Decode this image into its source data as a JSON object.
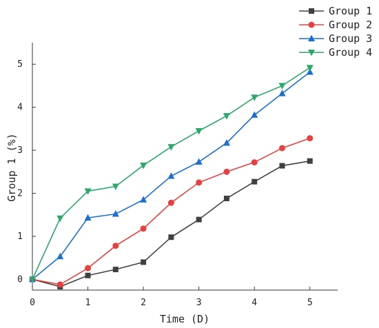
{
  "chart_data": {
    "type": "line",
    "title": "",
    "xlabel": "Time (D)",
    "ylabel": "Group 1 (%)",
    "xlim": [
      0,
      5.5
    ],
    "ylim": [
      -0.25,
      5.5
    ],
    "x_ticks": [
      0,
      1,
      2,
      3,
      4,
      5
    ],
    "y_ticks": [
      0,
      1,
      2,
      3,
      4,
      5
    ],
    "grid": false,
    "legend_position": "top-right",
    "x": [
      0,
      0.5,
      1,
      1.5,
      2,
      2.5,
      3,
      3.5,
      4,
      4.5,
      5
    ],
    "series": [
      {
        "name": "Group 1",
        "color": "#404040",
        "marker": "square",
        "values": [
          0.0,
          -0.17,
          0.09,
          0.23,
          0.4,
          0.98,
          1.39,
          1.88,
          2.27,
          2.64,
          2.75
        ]
      },
      {
        "name": "Group 2",
        "color": "#e8403f",
        "marker": "circle",
        "values": [
          0.0,
          -0.12,
          0.26,
          0.78,
          1.18,
          1.78,
          2.25,
          2.5,
          2.72,
          3.05,
          3.28
        ]
      },
      {
        "name": "Group 3",
        "color": "#1a6fd4",
        "marker": "triangle-up",
        "values": [
          0.0,
          0.53,
          1.43,
          1.52,
          1.85,
          2.4,
          2.73,
          3.17,
          3.82,
          4.32,
          4.82
        ]
      },
      {
        "name": "Group 4",
        "color": "#2ca86b",
        "marker": "triangle-down",
        "values": [
          0.0,
          1.42,
          2.05,
          2.16,
          2.65,
          3.08,
          3.45,
          3.8,
          4.23,
          4.5,
          4.92
        ]
      }
    ]
  }
}
